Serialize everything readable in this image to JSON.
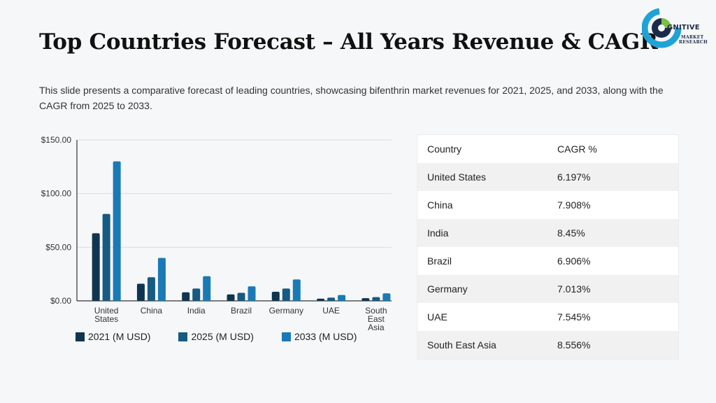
{
  "header": {
    "title": "Top Countries Forecast – All Years Revenue & CAGR",
    "subtitle": "This slide presents a comparative forecast of leading countries, showcasing bifenthrin market revenues for 2021, 2025, and 2033, along with the CAGR from 2025 to 2033."
  },
  "logo": {
    "word": "GNITIVE",
    "line1": "MARKET",
    "line2": "RESEARCH",
    "colors": [
      "#7ac142",
      "#1fa3d6",
      "#1c2b4a"
    ]
  },
  "chart_data": {
    "type": "bar",
    "categories": [
      "United States",
      "China",
      "India",
      "Brazil",
      "Germany",
      "UAE",
      "South East Asia"
    ],
    "category_lines": [
      [
        "United",
        "States"
      ],
      [
        "China"
      ],
      [
        "India"
      ],
      [
        "Brazil"
      ],
      [
        "Germany"
      ],
      [
        "UAE"
      ],
      [
        "South",
        "East",
        "Asia"
      ]
    ],
    "series": [
      {
        "name": "2021 (M USD)",
        "color": "#0f3550",
        "values": [
          63,
          16,
          8,
          6,
          8.5,
          2,
          2.5
        ]
      },
      {
        "name": "2025 (M USD)",
        "color": "#175a82",
        "values": [
          81,
          22,
          11.5,
          7.5,
          11.5,
          3,
          3.5
        ]
      },
      {
        "name": "2033 (M USD)",
        "color": "#1a7ab6",
        "values": [
          130,
          40,
          23,
          13.5,
          20,
          5.5,
          7
        ]
      }
    ],
    "yticks": [
      "$0.00",
      "$50.00",
      "$100.00",
      "$150.00"
    ],
    "ytick_values": [
      0,
      50,
      100,
      150
    ],
    "ylim": [
      0,
      150
    ],
    "grid": true,
    "legend": "bottom",
    "title": "",
    "xlabel": "",
    "ylabel": ""
  },
  "table": {
    "headers": [
      "Country",
      "CAGR %"
    ],
    "rows": [
      [
        "United States",
        "6.197%"
      ],
      [
        "China",
        "7.908%"
      ],
      [
        "India",
        "8.45%"
      ],
      [
        "Brazil",
        "6.906%"
      ],
      [
        "Germany",
        "7.013%"
      ],
      [
        "UAE",
        "7.545%"
      ],
      [
        "South East Asia",
        "8.556%"
      ]
    ]
  }
}
